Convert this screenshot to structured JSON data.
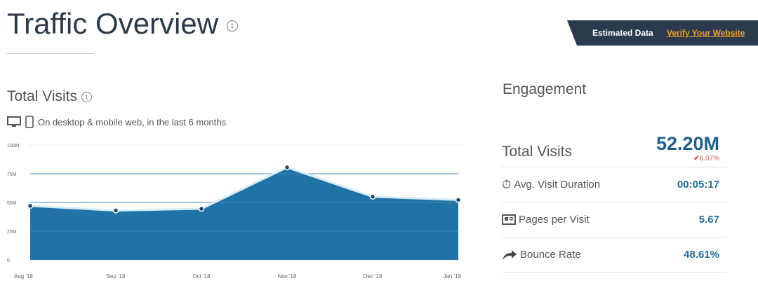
{
  "header": {
    "title": "Traffic Overview",
    "banner_label": "Estimated Data",
    "banner_link": "Verify Your Website"
  },
  "visits": {
    "title": "Total Visits",
    "subtitle": "On desktop & mobile web, in the last 6 months"
  },
  "chart_data": {
    "type": "area",
    "categories": [
      "Aug '18",
      "Sep '18",
      "Oct '18",
      "Nov '18",
      "Dec '18",
      "Jan '19"
    ],
    "values": [
      47,
      43,
      44.5,
      80.5,
      55,
      52.2
    ],
    "unit": "M",
    "ylim": [
      0,
      100
    ],
    "yticks": [
      "0",
      "25M",
      "50M",
      "75M",
      "100M"
    ],
    "yticks_values": [
      0,
      25,
      50,
      75,
      100
    ],
    "grid": true,
    "color": "#1f73a6"
  },
  "engagement": {
    "title": "Engagement",
    "total_label": "Total Visits",
    "total_value": "52.20M",
    "total_change": "6.07%",
    "change_dir": "down",
    "metrics": [
      {
        "icon": "stopwatch-icon",
        "label": "Avg. Visit Duration",
        "value": "00:05:17"
      },
      {
        "icon": "pages-icon",
        "label": "Pages per Visit",
        "value": "5.67"
      },
      {
        "icon": "share-arrow-icon",
        "label": "Bounce Rate",
        "value": "48.61%"
      }
    ]
  }
}
